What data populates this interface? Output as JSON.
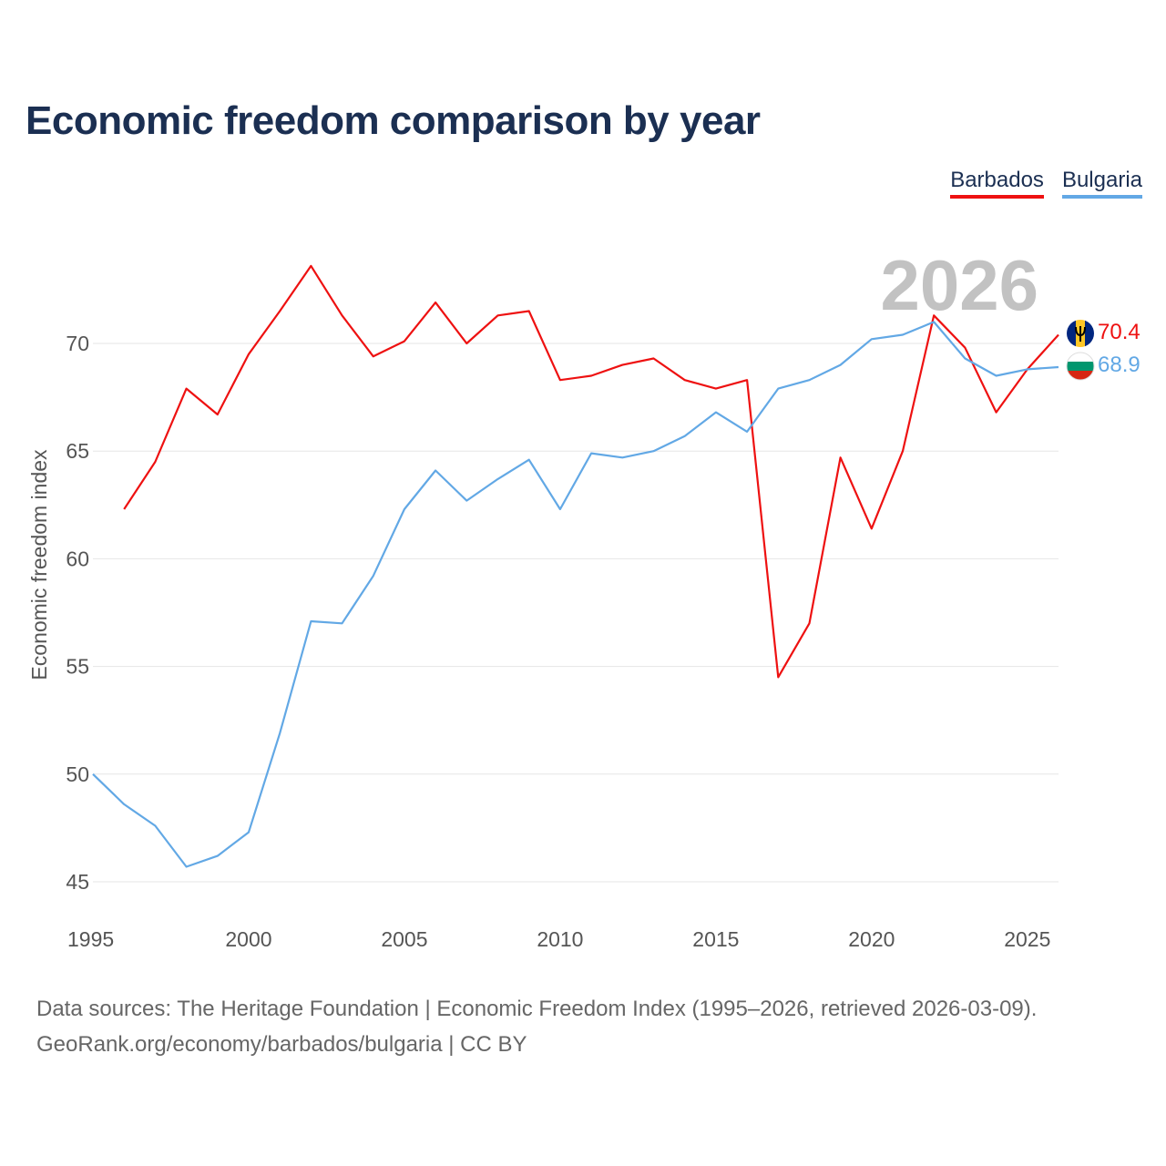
{
  "title": "Economic freedom comparison by year",
  "legend": {
    "barbados": "Barbados",
    "bulgaria": "Bulgaria"
  },
  "source": {
    "line1": "Data sources: The Heritage Foundation | Economic Freedom Index (1995–2026, retrieved 2026-03-09).",
    "line2": "GeoRank.org/economy/barbados/bulgaria | CC BY"
  },
  "chart_data": {
    "type": "line",
    "title": "Economic freedom comparison by year",
    "xlabel": "",
    "ylabel": "Economic freedom index",
    "xlim": [
      1995,
      2026
    ],
    "ylim": [
      45,
      74
    ],
    "yticks": [
      45,
      50,
      55,
      60,
      65,
      70
    ],
    "xticks": [
      1995,
      2000,
      2005,
      2010,
      2015,
      2020,
      2025
    ],
    "grid": true,
    "legend_position": "top-right",
    "current_year": "2026",
    "colors": {
      "Barbados": "#ee1111",
      "Bulgaria": "#62a8e5"
    },
    "series": [
      {
        "name": "Barbados",
        "x": [
          1996,
          1997,
          1998,
          1999,
          2000,
          2001,
          2002,
          2003,
          2004,
          2005,
          2006,
          2007,
          2008,
          2009,
          2010,
          2011,
          2012,
          2013,
          2014,
          2015,
          2016,
          2017,
          2018,
          2019,
          2020,
          2021,
          2022,
          2023,
          2024,
          2025,
          2026
        ],
        "values": [
          62.3,
          64.5,
          67.9,
          66.7,
          69.5,
          71.5,
          73.6,
          71.3,
          69.4,
          70.1,
          71.9,
          70.0,
          71.3,
          71.5,
          68.3,
          68.5,
          69.0,
          69.3,
          68.3,
          67.9,
          68.3,
          54.5,
          57.0,
          64.7,
          61.4,
          65.0,
          71.3,
          69.8,
          66.8,
          68.8,
          70.4
        ],
        "end_label": "70.4"
      },
      {
        "name": "Bulgaria",
        "x": [
          1995,
          1996,
          1997,
          1998,
          1999,
          2000,
          2001,
          2002,
          2003,
          2004,
          2005,
          2006,
          2007,
          2008,
          2009,
          2010,
          2011,
          2012,
          2013,
          2014,
          2015,
          2016,
          2017,
          2018,
          2019,
          2020,
          2021,
          2022,
          2023,
          2024,
          2025,
          2026
        ],
        "values": [
          50.0,
          48.6,
          47.6,
          45.7,
          46.2,
          47.3,
          51.9,
          57.1,
          57.0,
          59.2,
          62.3,
          64.1,
          62.7,
          63.7,
          64.6,
          62.3,
          64.9,
          64.7,
          65.0,
          65.7,
          66.8,
          65.9,
          67.9,
          68.3,
          69.0,
          70.2,
          70.4,
          71.0,
          69.3,
          68.5,
          68.8,
          68.9
        ],
        "end_label": "68.9"
      }
    ]
  }
}
